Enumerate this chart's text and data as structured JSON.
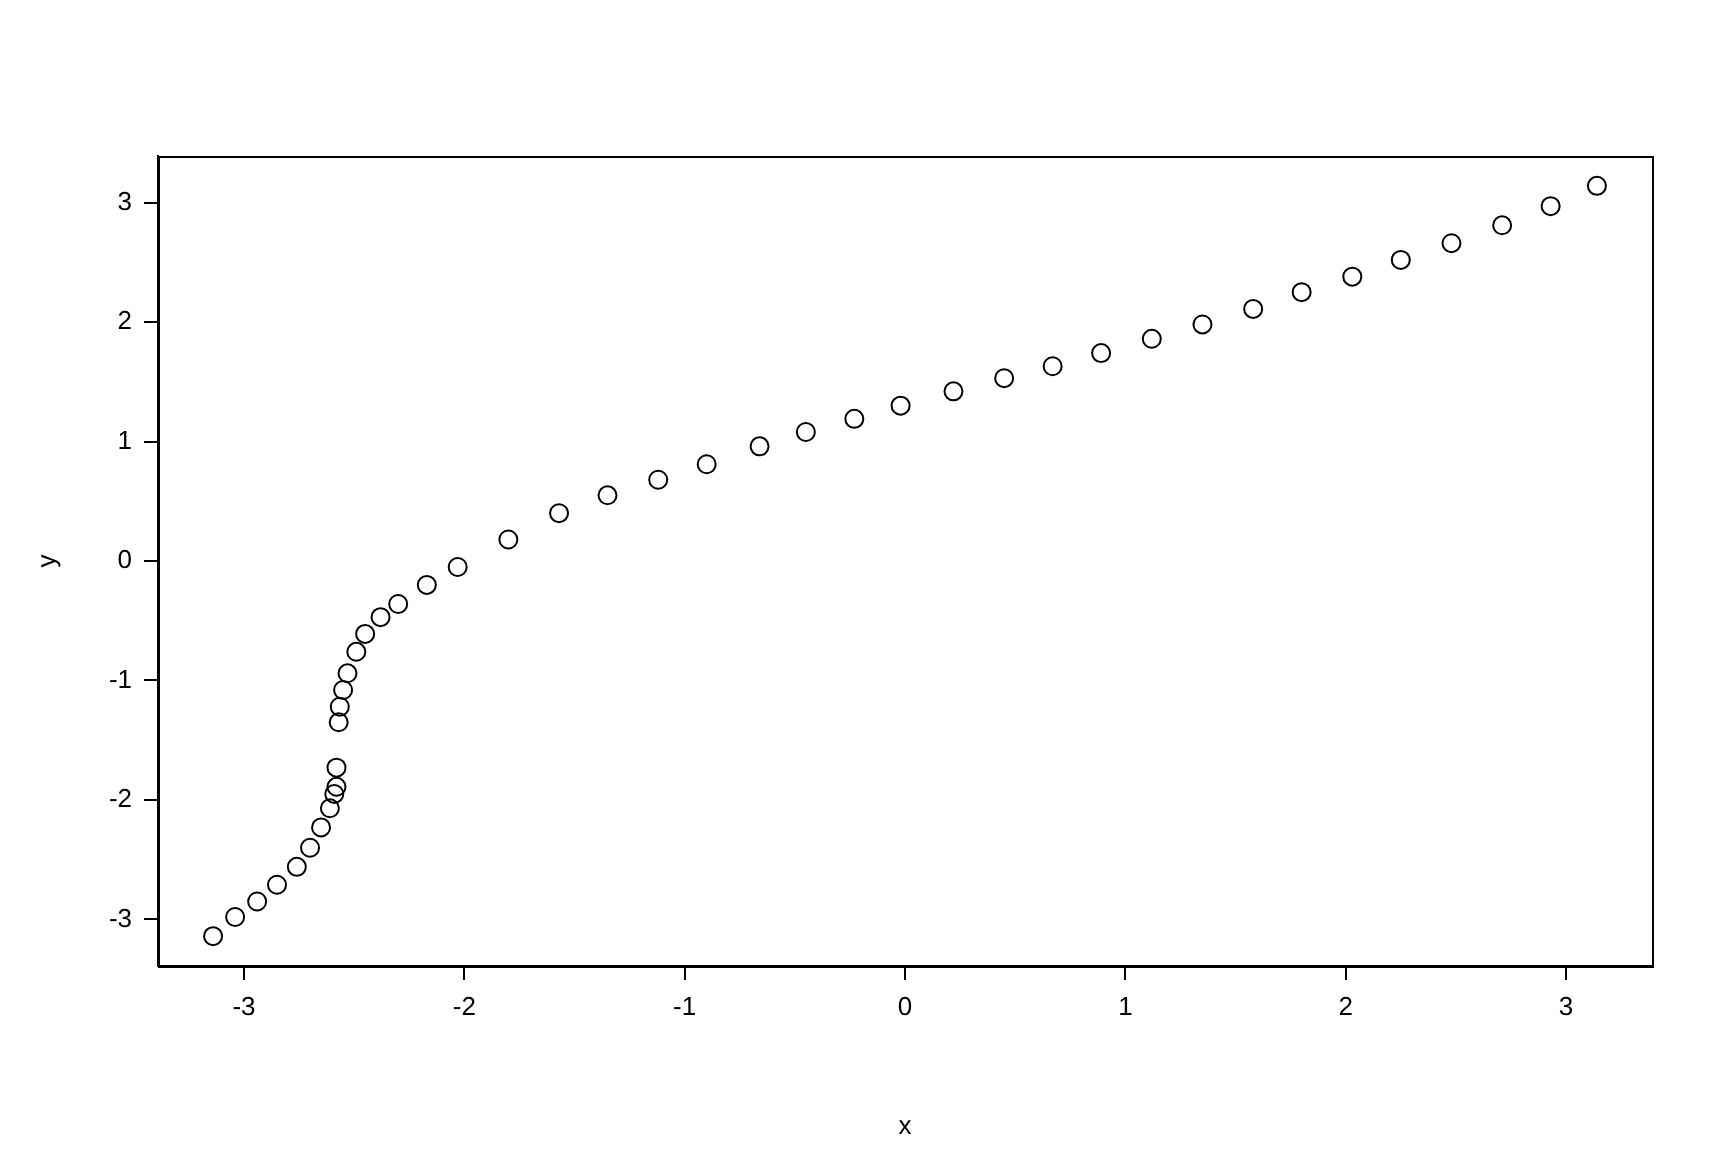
{
  "chart_data": {
    "type": "scatter",
    "xlabel": "x",
    "ylabel": "y",
    "marker": "circle",
    "grid": false,
    "legend": false,
    "xlim": [
      -3.39,
      3.39
    ],
    "xticks": [
      -3,
      -2,
      -1,
      0,
      1,
      2,
      3
    ],
    "ylim": [
      -3.39,
      3.39
    ],
    "yticks": [
      -3,
      -2,
      -1,
      0,
      1,
      2,
      3
    ],
    "series": [
      {
        "color": "#000000",
        "x": [
          -3.14,
          -3.04,
          -2.94,
          -2.85,
          -2.76,
          -2.7,
          -2.65,
          -2.61,
          -2.59,
          -2.58,
          -2.58,
          -2.57,
          -2.565,
          -2.55,
          -2.53,
          -2.49,
          -2.45,
          -2.38,
          -2.3,
          -2.17,
          -2.03,
          -1.8,
          -1.57,
          -1.35,
          -1.12,
          -0.9,
          -0.66,
          -0.45,
          -0.23,
          -0.02,
          0.22,
          0.45,
          0.67,
          0.89,
          1.12,
          1.35,
          1.58,
          1.8,
          2.03,
          2.25,
          2.48,
          2.71,
          2.93,
          3.14
        ],
        "values": [
          -3.14,
          -2.98,
          -2.85,
          -2.71,
          -2.56,
          -2.4,
          -2.23,
          -2.07,
          -1.95,
          -1.89,
          -1.73,
          -1.35,
          -1.22,
          -1.08,
          -0.94,
          -0.76,
          -0.61,
          -0.47,
          -0.36,
          -0.2,
          -0.05,
          0.18,
          0.4,
          0.55,
          0.68,
          0.81,
          0.96,
          1.08,
          1.19,
          1.3,
          1.42,
          1.53,
          1.63,
          1.74,
          1.86,
          1.98,
          2.11,
          2.25,
          2.38,
          2.52,
          2.66,
          2.81,
          2.97,
          3.14
        ]
      }
    ]
  }
}
